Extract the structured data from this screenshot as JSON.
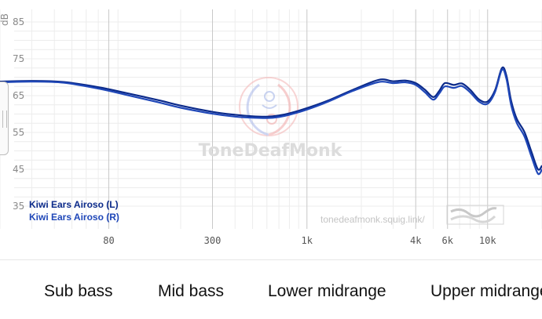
{
  "chart_data": {
    "type": "line",
    "x_scale": "log",
    "xlim": [
      20,
      20000
    ],
    "ylim": [
      35,
      85
    ],
    "unit_label": "dB",
    "y_ticks": [
      85,
      75,
      65,
      55,
      45,
      35
    ],
    "x_ticks": [
      {
        "value": 80,
        "label": "80"
      },
      {
        "value": 300,
        "label": "300"
      },
      {
        "value": 1000,
        "label": "1k"
      },
      {
        "value": 4000,
        "label": "4k"
      },
      {
        "value": 6000,
        "label": "6k"
      },
      {
        "value": 10000,
        "label": "10k"
      }
    ],
    "grid": true,
    "legend_position": "bottom-left",
    "series": [
      {
        "name": "Kiwi Ears Airoso (L)",
        "color": "#0b2a8a",
        "points": [
          [
            20,
            68.8
          ],
          [
            30,
            69.0
          ],
          [
            45,
            68.7
          ],
          [
            70,
            67.3
          ],
          [
            100,
            65.7
          ],
          [
            150,
            63.8
          ],
          [
            200,
            62.3
          ],
          [
            300,
            60.6
          ],
          [
            400,
            59.8
          ],
          [
            500,
            59.4
          ],
          [
            600,
            59.3
          ],
          [
            700,
            59.6
          ],
          [
            800,
            60.2
          ],
          [
            1000,
            61.6
          ],
          [
            1300,
            63.6
          ],
          [
            1800,
            66.6
          ],
          [
            2500,
            69.3
          ],
          [
            3000,
            68.9
          ],
          [
            3500,
            69.1
          ],
          [
            4000,
            68.4
          ],
          [
            4500,
            66.6
          ],
          [
            5000,
            64.6
          ],
          [
            5400,
            66.3
          ],
          [
            5800,
            68.4
          ],
          [
            6500,
            67.9
          ],
          [
            7200,
            68.3
          ],
          [
            8000,
            66.6
          ],
          [
            9000,
            63.9
          ],
          [
            10000,
            63.4
          ],
          [
            11000,
            66.5
          ],
          [
            12000,
            72.5
          ],
          [
            12700,
            70.5
          ],
          [
            13500,
            63.6
          ],
          [
            14500,
            58.7
          ],
          [
            16000,
            55.1
          ],
          [
            17500,
            49.7
          ],
          [
            19000,
            45.0
          ],
          [
            20000,
            46.0
          ]
        ]
      },
      {
        "name": "Kiwi Ears Airoso (R)",
        "color": "#1f47b8",
        "points": [
          [
            20,
            68.6
          ],
          [
            30,
            68.8
          ],
          [
            45,
            68.5
          ],
          [
            70,
            66.9
          ],
          [
            100,
            65.2
          ],
          [
            150,
            63.2
          ],
          [
            200,
            61.7
          ],
          [
            300,
            60.1
          ],
          [
            400,
            59.3
          ],
          [
            500,
            59.0
          ],
          [
            600,
            58.9
          ],
          [
            700,
            59.2
          ],
          [
            800,
            59.8
          ],
          [
            1000,
            61.2
          ],
          [
            1300,
            63.3
          ],
          [
            1800,
            66.3
          ],
          [
            2500,
            68.7
          ],
          [
            3000,
            68.4
          ],
          [
            3500,
            68.6
          ],
          [
            4000,
            67.9
          ],
          [
            4500,
            65.9
          ],
          [
            5000,
            63.9
          ],
          [
            5400,
            65.6
          ],
          [
            5800,
            67.5
          ],
          [
            6500,
            67.1
          ],
          [
            7200,
            67.6
          ],
          [
            8000,
            65.9
          ],
          [
            9000,
            63.3
          ],
          [
            10000,
            62.8
          ],
          [
            11000,
            66.0
          ],
          [
            12000,
            72.0
          ],
          [
            12700,
            69.6
          ],
          [
            13500,
            62.4
          ],
          [
            14500,
            57.6
          ],
          [
            16000,
            53.9
          ],
          [
            17500,
            48.4
          ],
          [
            19000,
            43.8
          ],
          [
            20000,
            45.0
          ]
        ]
      }
    ]
  },
  "watermark": "ToneDeafMonk",
  "site_label": "tonedeafmonk.squig.link/",
  "frequency_bands": [
    "Sub bass",
    "Mid bass",
    "Lower midrange",
    "Upper midrange"
  ]
}
